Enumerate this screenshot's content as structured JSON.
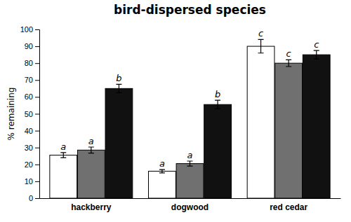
{
  "chart_data": {
    "type": "bar",
    "title": "bird-dispersed species",
    "y_label": "% remaining",
    "categories": [
      "hackberry",
      "dogwood",
      "red cedar"
    ],
    "series": [
      {
        "color": "white",
        "values": [
          25.5,
          16.0,
          90.0
        ],
        "errors": [
          1.5,
          1.0,
          4.0
        ],
        "annotations": [
          "a",
          "a",
          "c"
        ]
      },
      {
        "color": "#707070",
        "values": [
          28.5,
          20.5,
          80.0
        ],
        "errors": [
          1.8,
          1.5,
          2.0
        ],
        "annotations": [
          "a",
          "a",
          "c"
        ]
      },
      {
        "color": "#111111",
        "values": [
          65.0,
          55.5,
          85.0
        ],
        "errors": [
          2.5,
          2.5,
          2.5
        ],
        "annotations": [
          "b",
          "b",
          "c"
        ]
      }
    ],
    "ylim": [
      0,
      100
    ],
    "yticks": [
      0,
      10,
      20,
      30,
      40,
      50,
      60,
      70,
      80,
      90,
      100
    ],
    "grid": false
  }
}
